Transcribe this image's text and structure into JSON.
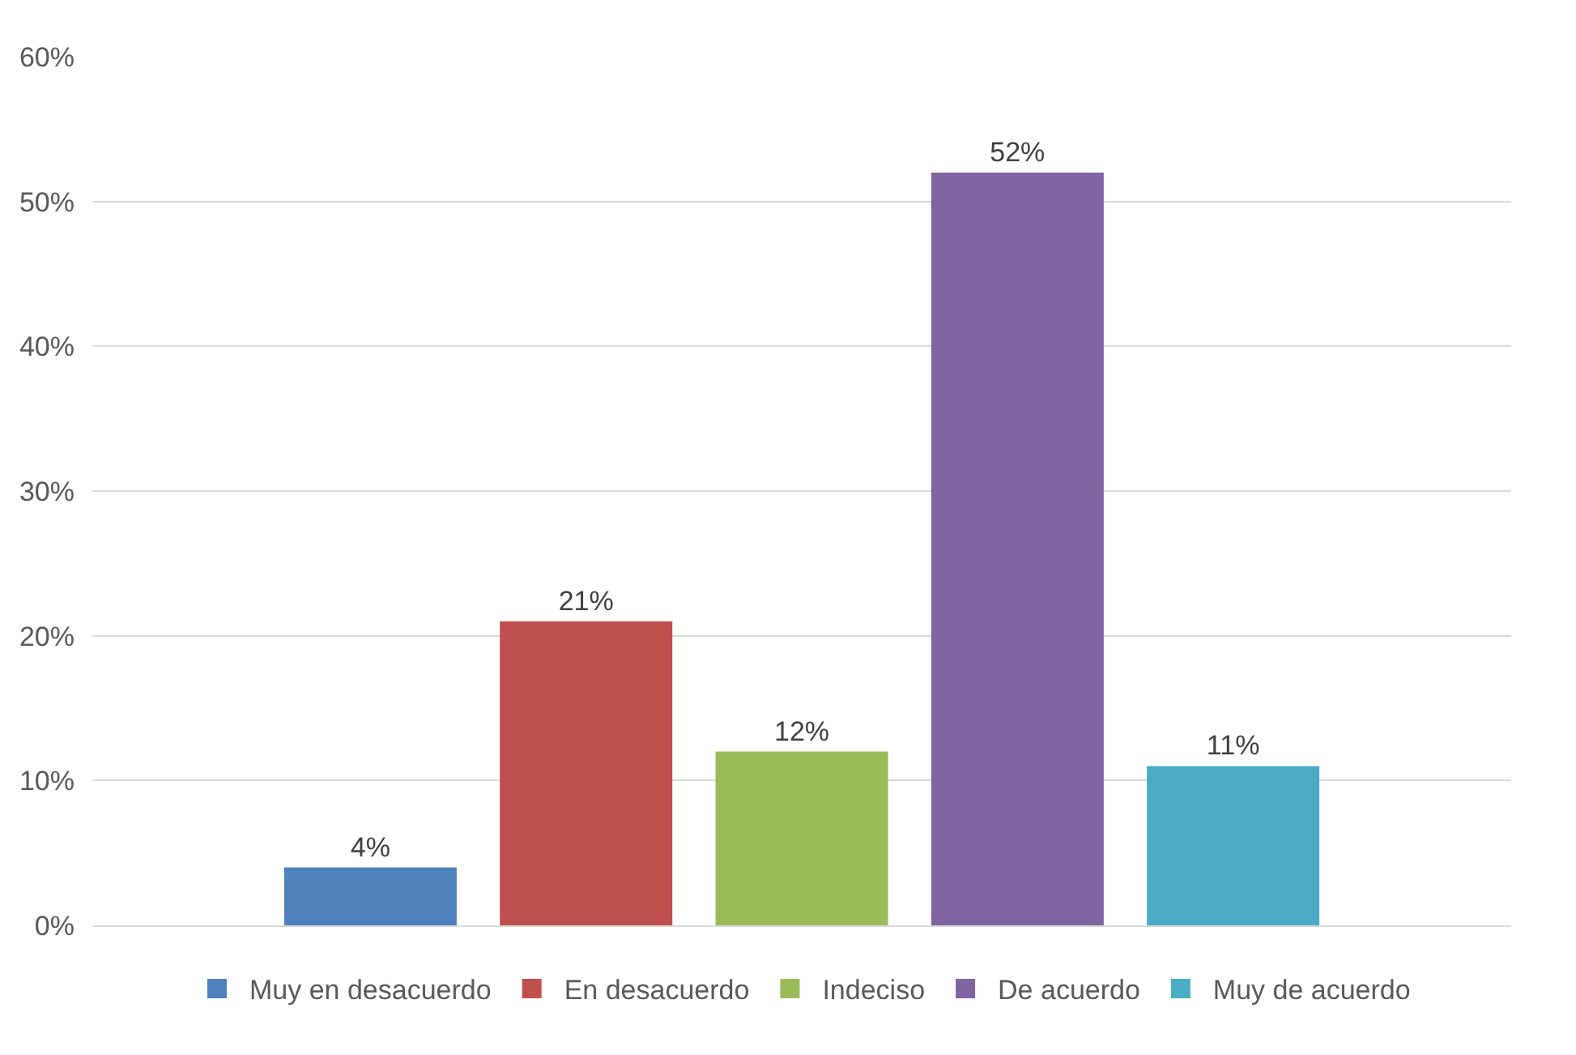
{
  "chart_data": {
    "type": "bar",
    "categories": [
      null
    ],
    "series": [
      {
        "name": "Muy en desacuerdo",
        "color": "#4f81bd",
        "values": [
          4
        ],
        "value_labels": [
          "4%"
        ]
      },
      {
        "name": "En desacuerdo",
        "color": "#c0504d",
        "values": [
          21
        ],
        "value_labels": [
          "21%"
        ]
      },
      {
        "name": "Indeciso",
        "color": "#9bbb59",
        "values": [
          12
        ],
        "value_labels": [
          "12%"
        ]
      },
      {
        "name": "De acuerdo",
        "color": "#8064a2",
        "values": [
          52
        ],
        "value_labels": [
          "52%"
        ]
      },
      {
        "name": "Muy de acuerdo",
        "color": "#4bacc6",
        "values": [
          11
        ],
        "value_labels": [
          "11%"
        ]
      }
    ],
    "ylim": [
      0,
      60
    ],
    "yticks": [
      {
        "value": 0,
        "label": "0%"
      },
      {
        "value": 10,
        "label": "10%"
      },
      {
        "value": 20,
        "label": "20%"
      },
      {
        "value": 30,
        "label": "30%"
      },
      {
        "value": 40,
        "label": "40%"
      },
      {
        "value": 50,
        "label": "50%"
      },
      {
        "value": 60,
        "label": "60%"
      }
    ],
    "grid": "y",
    "legend": "bottom",
    "tick_labels": "y"
  }
}
